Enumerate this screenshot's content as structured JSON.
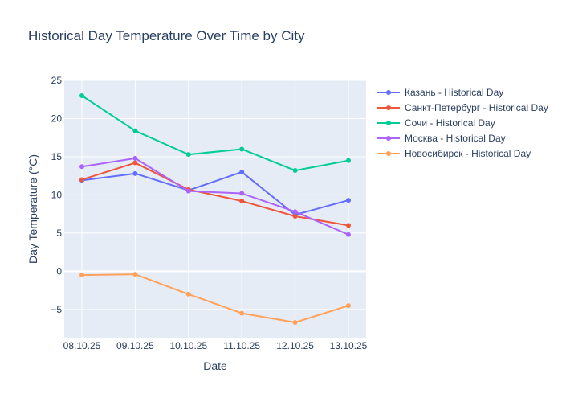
{
  "chart_data": {
    "type": "line",
    "title": "Historical Day Temperature Over Time by City",
    "xlabel": "Date",
    "ylabel": "Day Temperature (°C)",
    "x": [
      "08.10.25",
      "09.10.25",
      "10.10.25",
      "11.10.25",
      "12.10.25",
      "13.10.25"
    ],
    "ylim": [
      -8.7,
      25
    ],
    "yticks": [
      -5,
      0,
      5,
      10,
      15,
      20,
      25
    ],
    "ytick_labels": [
      "−5",
      "0",
      "5",
      "10",
      "15",
      "20",
      "25"
    ],
    "grid": true,
    "legend_position": "right",
    "series": [
      {
        "name": "Казань - Historical Day",
        "color": "#636efa",
        "values": [
          11.9,
          12.8,
          10.6,
          13.0,
          7.4,
          9.3
        ]
      },
      {
        "name": "Санкт-Петербург - Historical Day",
        "color": "#ef553b",
        "values": [
          12.0,
          14.2,
          10.7,
          9.2,
          7.2,
          6.0
        ]
      },
      {
        "name": "Сочи - Historical Day",
        "color": "#00cc96",
        "values": [
          23.0,
          18.4,
          15.3,
          16.0,
          13.2,
          14.5
        ]
      },
      {
        "name": "Москва - Historical Day",
        "color": "#ab63fa",
        "values": [
          13.7,
          14.8,
          10.5,
          10.2,
          7.8,
          4.8
        ]
      },
      {
        "name": "Новосибирск - Historical Day",
        "color": "#ffa15a",
        "values": [
          -0.5,
          -0.4,
          -3.0,
          -5.5,
          -6.7,
          -4.5
        ]
      }
    ]
  }
}
